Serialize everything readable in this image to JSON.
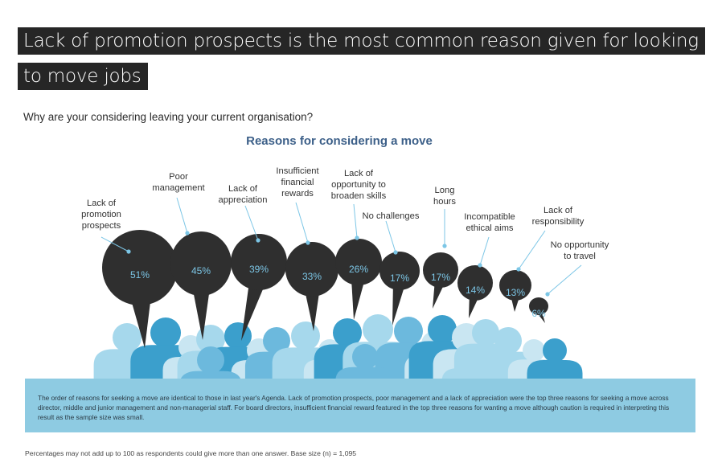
{
  "title_line1": "Lack of promotion prospects is the most common reason given for looking",
  "title_line2": "to move jobs",
  "question": "Why are your considering leaving your current organisation?",
  "chart_data": {
    "type": "bar",
    "title": "Reasons for considering a move",
    "categories": [
      "Lack of promotion prospects",
      "Poor management",
      "Lack of appreciation",
      "Insufficient financial rewards",
      "Lack of opportunity to broaden skills",
      "No challenges",
      "Long hours",
      "Incompatible ethical aims",
      "Lack of responsibility",
      "No opportunity to travel"
    ],
    "label_lines": [
      [
        "Lack of",
        "promotion",
        "prospects"
      ],
      [
        "Poor",
        "management"
      ],
      [
        "Lack of",
        "appreciation"
      ],
      [
        "Insufficient",
        "financial",
        "rewards"
      ],
      [
        "Lack of",
        "opportunity to",
        "broaden skills"
      ],
      [
        "No challenges"
      ],
      [
        "Long",
        "hours"
      ],
      [
        "Incompatible",
        "ethical aims"
      ],
      [
        "Lack of",
        "responsibility"
      ],
      [
        "No opportunity",
        "to travel"
      ]
    ],
    "values": [
      51,
      45,
      39,
      33,
      26,
      17,
      17,
      14,
      13,
      6
    ],
    "value_labels": [
      "51%",
      "45%",
      "39%",
      "33%",
      "26%",
      "17%",
      "17%",
      "14%",
      "13%",
      "6%"
    ],
    "unit": "%",
    "bubble_color": "#2f2f2f",
    "value_color": "#7cc6e6",
    "people_colors": [
      "#a6d8ec",
      "#3b9fcc",
      "#6cb9dd",
      "#c9e6f2"
    ]
  },
  "footnote": "The order of reasons for seeking a move are identical to those in last year's Agenda. Lack of promotion prospects, poor management and a lack of appreciation were the top three reasons for seeking a move across director, middle and junior management and non-managerial staff. For board directors, insufficient financial reward featured in the top three reasons for wanting a move although caution is required in interpreting this result as the sample size was small.",
  "base_note": "Percentages may not add up to 100 as respondents could give more than one answer. Base size (n) = 1,095"
}
